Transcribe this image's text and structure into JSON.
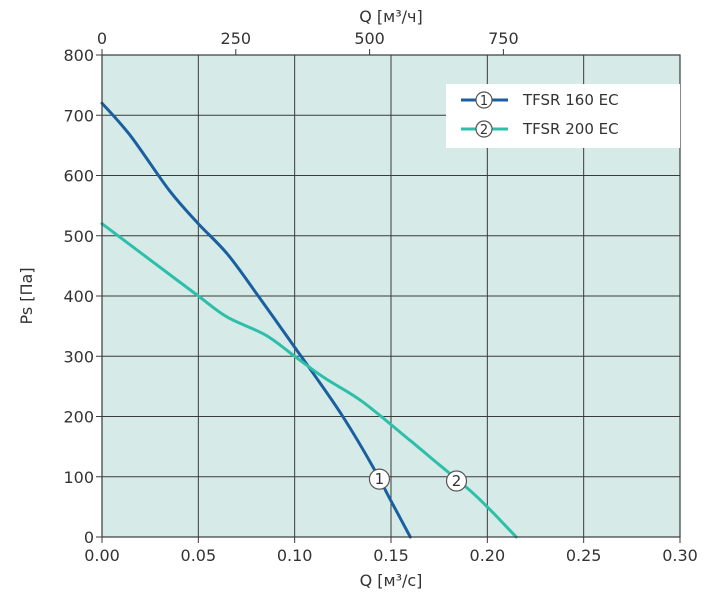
{
  "chart_data": {
    "type": "line",
    "xlabel": "Q [м³/с]",
    "x2label": "Q [м³/ч]",
    "ylabel": "Ps [Па]",
    "xlim": [
      0,
      0.3
    ],
    "ylim": [
      0,
      800
    ],
    "x2lim": [
      0,
      1080
    ],
    "x_ticks": [
      "0.00",
      "0.05",
      "0.10",
      "0.15",
      "0.20",
      "0.25",
      "0.30"
    ],
    "x_tick_values": [
      0,
      0.05,
      0.1,
      0.15,
      0.2,
      0.25,
      0.3
    ],
    "y_ticks": [
      "0",
      "100",
      "200",
      "300",
      "400",
      "500",
      "600",
      "700",
      "800"
    ],
    "y_tick_values": [
      0,
      100,
      200,
      300,
      400,
      500,
      600,
      700,
      800
    ],
    "x2_ticks": [
      "0",
      "250",
      "500",
      "750"
    ],
    "x2_tick_values": [
      0,
      250,
      500,
      750
    ],
    "grid": true,
    "legend_position": "top-right",
    "plot_background": "#d6ebe7",
    "series": [
      {
        "name": "TFSR 160 EC",
        "marker": "1",
        "color": "#1a5fa0",
        "x": [
          0.0,
          0.015,
          0.035,
          0.05,
          0.065,
          0.08,
          0.1,
          0.11,
          0.125,
          0.14,
          0.15,
          0.16
        ],
        "y": [
          720,
          665,
          575,
          520,
          470,
          405,
          315,
          270,
          200,
          120,
          60,
          0
        ],
        "marker_at": [
          0.144,
          96
        ]
      },
      {
        "name": "TFSR 200 EC",
        "marker": "2",
        "color": "#2dbfa9",
        "x": [
          0.0,
          0.025,
          0.05,
          0.065,
          0.085,
          0.1,
          0.115,
          0.135,
          0.16,
          0.175,
          0.19,
          0.2,
          0.215
        ],
        "y": [
          520,
          460,
          400,
          365,
          335,
          300,
          265,
          225,
          160,
          120,
          80,
          50,
          0
        ],
        "marker_at": [
          0.184,
          93
        ]
      }
    ]
  }
}
